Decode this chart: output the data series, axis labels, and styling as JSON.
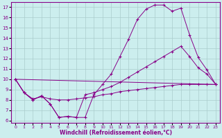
{
  "xlabel": "Windchill (Refroidissement éolien,°C)",
  "background_color": "#cceeee",
  "grid_color": "#aacccc",
  "line_color": "#880088",
  "xlim": [
    -0.5,
    23.5
  ],
  "ylim": [
    5.8,
    17.5
  ],
  "xticks": [
    0,
    1,
    2,
    3,
    4,
    5,
    6,
    7,
    8,
    9,
    10,
    11,
    12,
    13,
    14,
    15,
    16,
    17,
    18,
    19,
    20,
    21,
    22,
    23
  ],
  "yticks": [
    6,
    7,
    8,
    9,
    10,
    11,
    12,
    13,
    14,
    15,
    16,
    17
  ],
  "line1_x": [
    0,
    1,
    2,
    3,
    4,
    5,
    6,
    7,
    8,
    9,
    10,
    11,
    12,
    13,
    14,
    15,
    16,
    17,
    18,
    19,
    20,
    21,
    22,
    23
  ],
  "line1_y": [
    10.0,
    8.7,
    8.0,
    8.4,
    7.6,
    6.3,
    6.4,
    6.3,
    6.3,
    8.5,
    9.5,
    10.5,
    12.2,
    13.9,
    15.8,
    16.8,
    17.2,
    17.2,
    16.6,
    16.9,
    14.3,
    12.1,
    10.9,
    9.5
  ],
  "line2_x": [
    0,
    1,
    2,
    3,
    4,
    5,
    6,
    7,
    8,
    9,
    10,
    11,
    12,
    13,
    14,
    15,
    16,
    17,
    18,
    19,
    20,
    21,
    22,
    23
  ],
  "line2_y": [
    10.0,
    8.7,
    8.0,
    8.4,
    7.6,
    6.3,
    6.4,
    6.3,
    8.5,
    8.7,
    9.0,
    9.3,
    9.7,
    10.2,
    10.7,
    11.2,
    11.7,
    12.2,
    12.7,
    13.2,
    12.2,
    11.1,
    10.5,
    9.5
  ],
  "line3_x": [
    0,
    23
  ],
  "line3_y": [
    10.0,
    9.5
  ],
  "line4_x": [
    0,
    1,
    2,
    3,
    4,
    5,
    6,
    7,
    8,
    9,
    10,
    11,
    12,
    13,
    14,
    15,
    16,
    17,
    18,
    19,
    20,
    21,
    22,
    23
  ],
  "line4_y": [
    10.0,
    8.7,
    8.1,
    8.3,
    8.1,
    8.0,
    8.0,
    8.1,
    8.2,
    8.3,
    8.5,
    8.6,
    8.8,
    8.9,
    9.0,
    9.1,
    9.2,
    9.3,
    9.4,
    9.5,
    9.5,
    9.5,
    9.5,
    9.5
  ]
}
